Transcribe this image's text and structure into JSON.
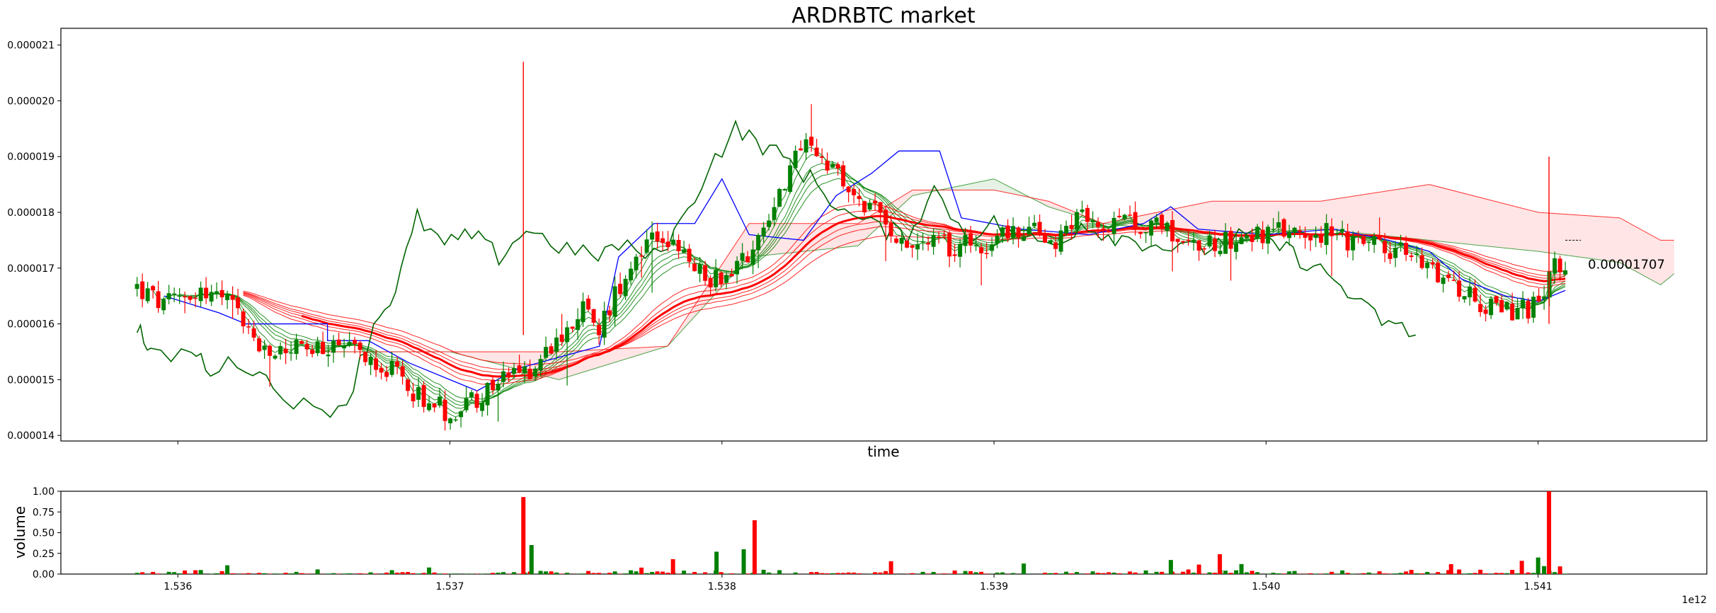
{
  "chart_data": [
    {
      "type": "candlestick",
      "title": "ARDRBTC market",
      "xlabel": "time",
      "ylabel": "",
      "xlim": [
        1.53557,
        1.54162
      ],
      "ylim": [
        1.39e-05,
        2.13e-05
      ],
      "x_ticks": [
        1.536,
        1.537,
        1.538,
        1.539,
        1.54,
        1.541
      ],
      "y_ticks": [
        1.4e-05,
        1.5e-05,
        1.6e-05,
        1.7e-05,
        1.8e-05,
        1.9e-05,
        2e-05,
        2.1e-05
      ],
      "y_tick_labels": [
        "0.000014",
        "0.000015",
        "0.000016",
        "0.000017",
        "0.000018",
        "0.000019",
        "0.000020",
        "0.000021"
      ],
      "x_offset_label": "1e12",
      "last_price_label": "0.00001707",
      "colors": {
        "up": "#008000",
        "down": "#ff0000",
        "kijun": "#0000ff",
        "chikou": "#006400",
        "cloud_bull": "#008000",
        "cloud_bear": "#ff0000"
      },
      "close_path": [
        [
          1.53585,
          1.665e-05
        ],
        [
          1.53595,
          1.63e-05
        ],
        [
          1.53605,
          1.66e-05
        ],
        [
          1.53615,
          1.65e-05
        ],
        [
          1.53622,
          1.62e-05
        ],
        [
          1.53632,
          1.54e-05
        ],
        [
          1.53642,
          1.56e-05
        ],
        [
          1.53652,
          1.55e-05
        ],
        [
          1.53662,
          1.55e-05
        ],
        [
          1.53672,
          1.54e-05
        ],
        [
          1.53682,
          1.5e-05
        ],
        [
          1.53692,
          1.46e-05
        ],
        [
          1.537,
          1.44e-05
        ],
        [
          1.5371,
          1.47e-05
        ],
        [
          1.5372,
          1.5e-05
        ],
        [
          1.5373,
          1.52e-05
        ],
        [
          1.5374,
          1.58e-05
        ],
        [
          1.53748,
          1.63e-05
        ],
        [
          1.53755,
          1.59e-05
        ],
        [
          1.53765,
          1.7e-05
        ],
        [
          1.53775,
          1.77e-05
        ],
        [
          1.53785,
          1.72e-05
        ],
        [
          1.53795,
          1.68e-05
        ],
        [
          1.53805,
          1.7e-05
        ],
        [
          1.53815,
          1.77e-05
        ],
        [
          1.53822,
          1.85e-05
        ],
        [
          1.5383,
          1.92e-05
        ],
        [
          1.53838,
          1.89e-05
        ],
        [
          1.53848,
          1.83e-05
        ],
        [
          1.53858,
          1.79e-05
        ],
        [
          1.53868,
          1.75e-05
        ],
        [
          1.53878,
          1.74e-05
        ],
        [
          1.5389,
          1.74e-05
        ],
        [
          1.539,
          1.75e-05
        ],
        [
          1.53912,
          1.77e-05
        ],
        [
          1.53922,
          1.75e-05
        ],
        [
          1.53932,
          1.79e-05
        ],
        [
          1.53942,
          1.77e-05
        ],
        [
          1.53952,
          1.78e-05
        ],
        [
          1.53962,
          1.78e-05
        ],
        [
          1.53972,
          1.74e-05
        ],
        [
          1.53982,
          1.75e-05
        ],
        [
          1.53992,
          1.76e-05
        ],
        [
          1.54002,
          1.76e-05
        ],
        [
          1.54012,
          1.77e-05
        ],
        [
          1.54022,
          1.76e-05
        ],
        [
          1.54032,
          1.75e-05
        ],
        [
          1.54042,
          1.74e-05
        ],
        [
          1.54052,
          1.72e-05
        ],
        [
          1.54062,
          1.7e-05
        ],
        [
          1.54072,
          1.66e-05
        ],
        [
          1.54082,
          1.63e-05
        ],
        [
          1.54092,
          1.62e-05
        ],
        [
          1.541,
          1.63e-05
        ],
        [
          1.54105,
          1.71e-05
        ],
        [
          1.5411,
          1.707e-05
        ]
      ],
      "kijun_path": [
        [
          1.53595,
          1.65e-05
        ],
        [
          1.53615,
          1.62e-05
        ],
        [
          1.53625,
          1.6e-05
        ],
        [
          1.53655,
          1.6e-05
        ],
        [
          1.53655,
          1.57e-05
        ],
        [
          1.5367,
          1.57e-05
        ],
        [
          1.53685,
          1.53e-05
        ],
        [
          1.537,
          1.5e-05
        ],
        [
          1.5371,
          1.48e-05
        ],
        [
          1.53725,
          1.52e-05
        ],
        [
          1.5374,
          1.54e-05
        ],
        [
          1.53755,
          1.56e-05
        ],
        [
          1.53762,
          1.72e-05
        ],
        [
          1.53775,
          1.78e-05
        ],
        [
          1.5379,
          1.78e-05
        ],
        [
          1.538,
          1.86e-05
        ],
        [
          1.5381,
          1.76e-05
        ],
        [
          1.5383,
          1.75e-05
        ],
        [
          1.53842,
          1.83e-05
        ],
        [
          1.53855,
          1.87e-05
        ],
        [
          1.53865,
          1.91e-05
        ],
        [
          1.5388,
          1.91e-05
        ],
        [
          1.53888,
          1.79e-05
        ],
        [
          1.5391,
          1.77e-05
        ],
        [
          1.53935,
          1.76e-05
        ],
        [
          1.53955,
          1.78e-05
        ],
        [
          1.53965,
          1.81e-05
        ],
        [
          1.53975,
          1.77e-05
        ],
        [
          1.54,
          1.76e-05
        ],
        [
          1.54025,
          1.77e-05
        ],
        [
          1.54045,
          1.75e-05
        ],
        [
          1.5406,
          1.73e-05
        ],
        [
          1.54072,
          1.68e-05
        ],
        [
          1.54088,
          1.65e-05
        ],
        [
          1.541,
          1.64e-05
        ],
        [
          1.5411,
          1.66e-05
        ]
      ],
      "chikou_path": [
        [
          1.53585,
          1.6e-05
        ],
        [
          1.5359,
          1.54e-05
        ],
        [
          1.53605,
          1.55e-05
        ],
        [
          1.53612,
          1.52e-05
        ],
        [
          1.53625,
          1.53e-05
        ],
        [
          1.53635,
          1.49e-05
        ],
        [
          1.5365,
          1.44e-05
        ],
        [
          1.53662,
          1.46e-05
        ],
        [
          1.53672,
          1.6e-05
        ],
        [
          1.5368,
          1.66e-05
        ],
        [
          1.53688,
          1.79e-05
        ],
        [
          1.53698,
          1.74e-05
        ],
        [
          1.53708,
          1.76e-05
        ],
        [
          1.53718,
          1.72e-05
        ],
        [
          1.53728,
          1.77e-05
        ],
        [
          1.5374,
          1.74e-05
        ],
        [
          1.53752,
          1.72e-05
        ],
        [
          1.53762,
          1.74e-05
        ],
        [
          1.53775,
          1.72e-05
        ],
        [
          1.53785,
          1.78e-05
        ],
        [
          1.53795,
          1.88e-05
        ],
        [
          1.53805,
          1.95e-05
        ],
        [
          1.53815,
          1.92e-05
        ],
        [
          1.53825,
          1.89e-05
        ],
        [
          1.53835,
          1.85e-05
        ],
        [
          1.53845,
          1.8e-05
        ],
        [
          1.53858,
          1.77e-05
        ],
        [
          1.53868,
          1.76e-05
        ],
        [
          1.53878,
          1.84e-05
        ],
        [
          1.5389,
          1.76e-05
        ],
        [
          1.539,
          1.78e-05
        ],
        [
          1.5391,
          1.76e-05
        ],
        [
          1.53922,
          1.74e-05
        ],
        [
          1.53932,
          1.78e-05
        ],
        [
          1.53942,
          1.76e-05
        ],
        [
          1.53952,
          1.75e-05
        ],
        [
          1.53962,
          1.74e-05
        ],
        [
          1.53975,
          1.73e-05
        ],
        [
          1.53985,
          1.75e-05
        ],
        [
          1.53995,
          1.76e-05
        ],
        [
          1.54005,
          1.74e-05
        ],
        [
          1.54015,
          1.71e-05
        ],
        [
          1.54025,
          1.68e-05
        ],
        [
          1.54035,
          1.63e-05
        ],
        [
          1.54045,
          1.6e-05
        ],
        [
          1.54055,
          1.58e-05
        ]
      ],
      "senkou_a_path": [
        [
          1.5365,
          1.55e-05
        ],
        [
          1.537,
          1.55e-05
        ],
        [
          1.5374,
          1.5e-05
        ],
        [
          1.5378,
          1.56e-05
        ],
        [
          1.5381,
          1.72e-05
        ],
        [
          1.5385,
          1.74e-05
        ],
        [
          1.5387,
          1.83e-05
        ],
        [
          1.539,
          1.86e-05
        ],
        [
          1.5392,
          1.81e-05
        ],
        [
          1.5394,
          1.78e-05
        ],
        [
          1.5398,
          1.76e-05
        ],
        [
          1.5402,
          1.77e-05
        ],
        [
          1.5406,
          1.75e-05
        ],
        [
          1.541,
          1.73e-05
        ],
        [
          1.5413,
          1.71e-05
        ],
        [
          1.54145,
          1.67e-05
        ],
        [
          1.5415,
          1.69e-05
        ]
      ],
      "senkou_b_path": [
        [
          1.5365,
          1.55e-05
        ],
        [
          1.537,
          1.55e-05
        ],
        [
          1.5374,
          1.55e-05
        ],
        [
          1.5378,
          1.56e-05
        ],
        [
          1.5381,
          1.78e-05
        ],
        [
          1.5385,
          1.78e-05
        ],
        [
          1.5387,
          1.84e-05
        ],
        [
          1.539,
          1.84e-05
        ],
        [
          1.5392,
          1.82e-05
        ],
        [
          1.5394,
          1.78e-05
        ],
        [
          1.5398,
          1.82e-05
        ],
        [
          1.5402,
          1.82e-05
        ],
        [
          1.5406,
          1.85e-05
        ],
        [
          1.541,
          1.8e-05
        ],
        [
          1.5413,
          1.79e-05
        ],
        [
          1.54145,
          1.75e-05
        ],
        [
          1.5415,
          1.75e-05
        ]
      ],
      "volume": {
        "ylabel": "volume",
        "ylim": [
          0,
          1.0
        ],
        "y_ticks": [
          0.0,
          0.25,
          0.5,
          0.75,
          1.0
        ],
        "y_tick_labels": [
          "0.00",
          "0.25",
          "0.50",
          "0.75",
          "1.00"
        ],
        "spikes": [
          {
            "x": 1.53727,
            "value": 0.93,
            "color": "red"
          },
          {
            "x": 1.5373,
            "value": 0.35,
            "color": "green"
          },
          {
            "x": 1.53812,
            "value": 0.65,
            "color": "red"
          },
          {
            "x": 1.53808,
            "value": 0.3,
            "color": "green"
          },
          {
            "x": 1.53798,
            "value": 0.27,
            "color": "green"
          },
          {
            "x": 1.53782,
            "value": 0.18,
            "color": "red"
          },
          {
            "x": 1.53983,
            "value": 0.24,
            "color": "red"
          },
          {
            "x": 1.53965,
            "value": 0.17,
            "color": "green"
          },
          {
            "x": 1.54104,
            "value": 1.0,
            "color": "red"
          },
          {
            "x": 1.541,
            "value": 0.2,
            "color": "green"
          },
          {
            "x": 1.54094,
            "value": 0.16,
            "color": "red"
          },
          {
            "x": 1.54068,
            "value": 0.12,
            "color": "red"
          }
        ]
      }
    }
  ]
}
